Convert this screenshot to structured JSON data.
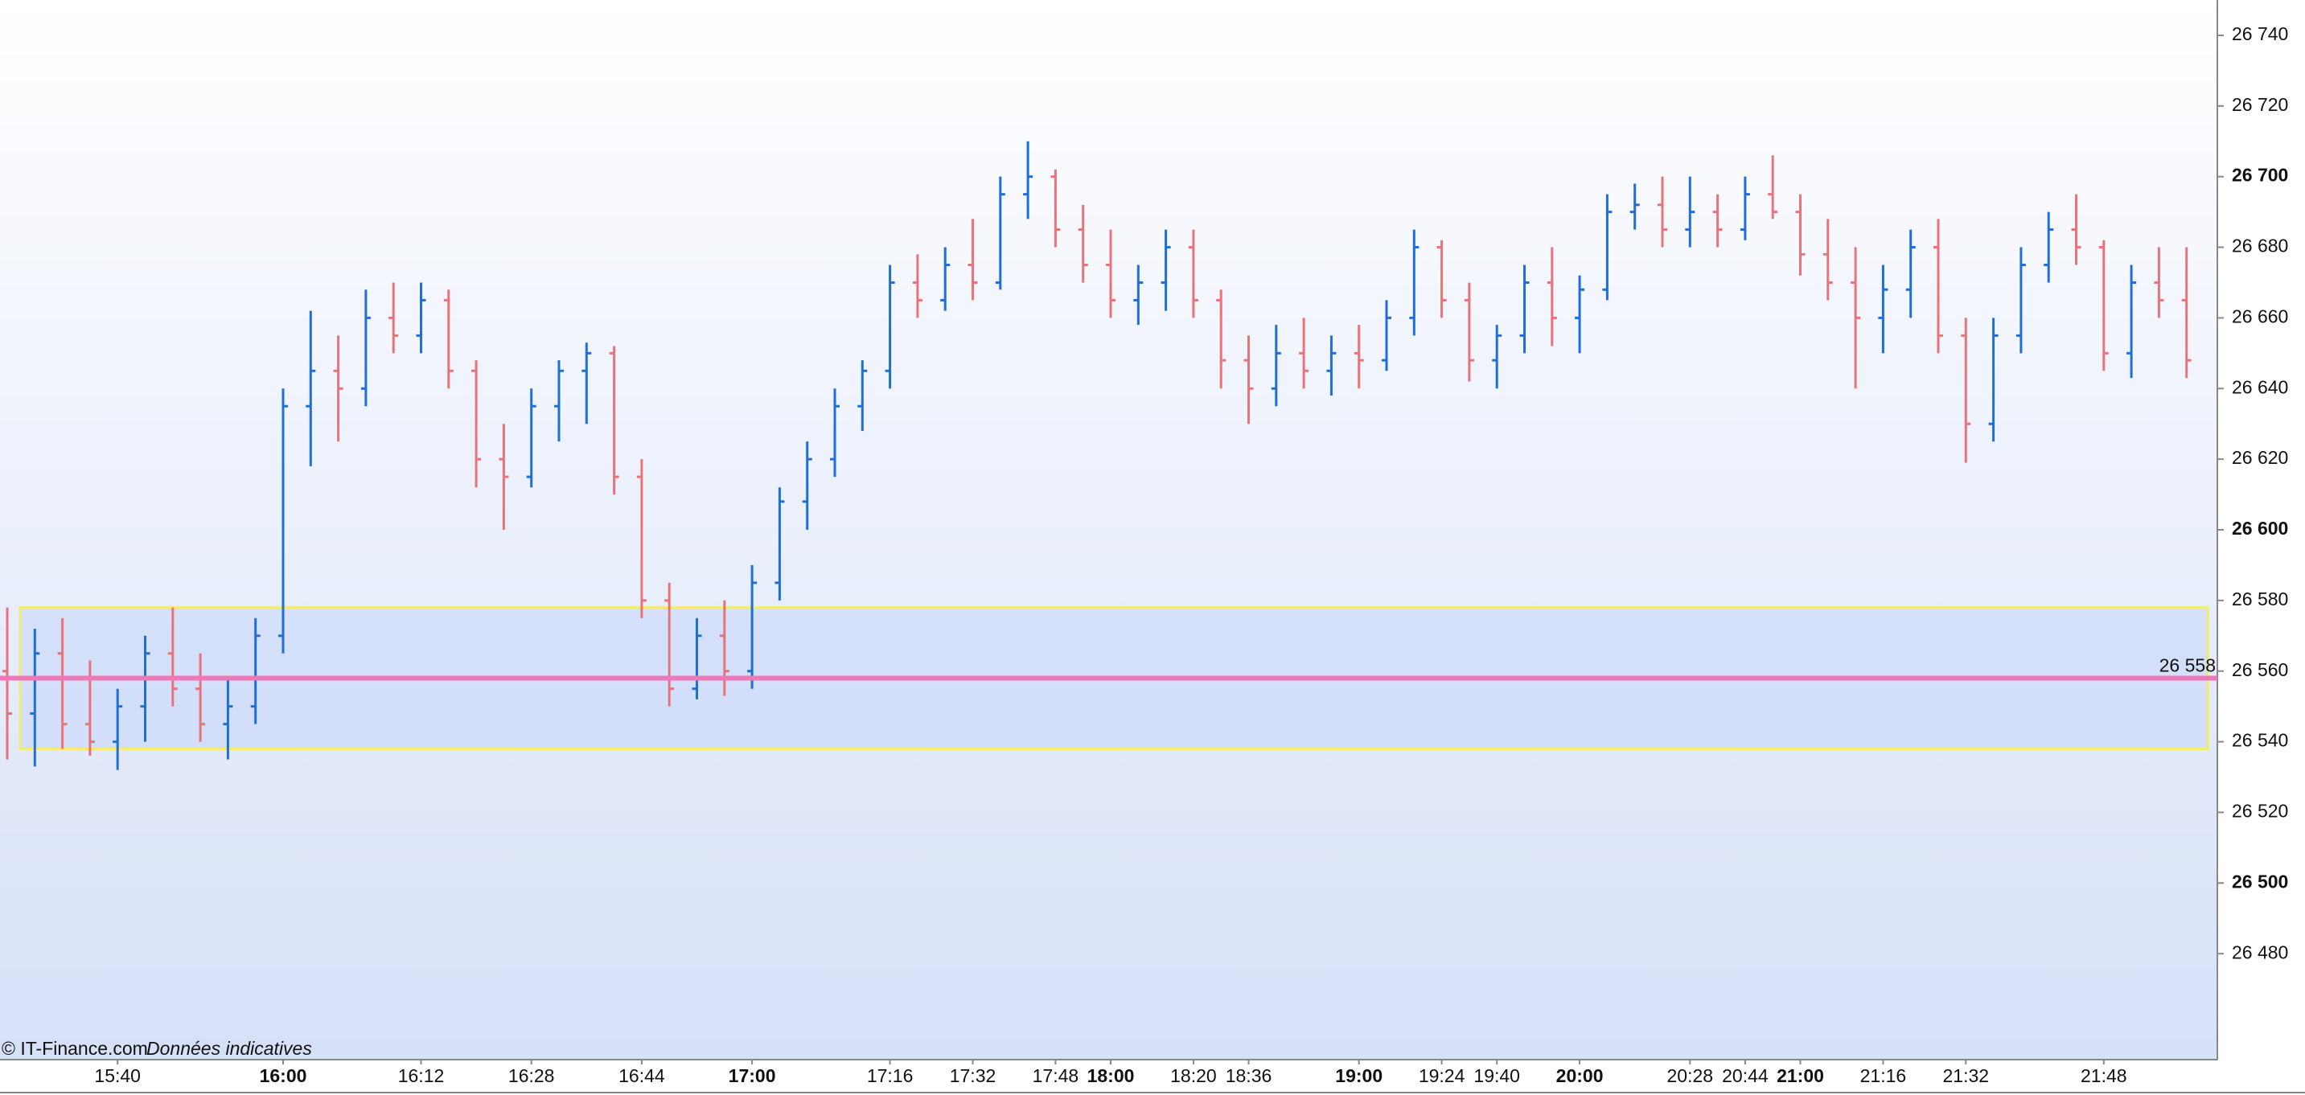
{
  "chart_data": {
    "type": "ohlc",
    "source": "© IT-Finance.com",
    "note": "Données indicatives",
    "categories": [
      null,
      null,
      null,
      null,
      "15:40",
      null,
      null,
      null,
      null,
      null,
      "16:00",
      null,
      null,
      null,
      null,
      "16:12",
      null,
      null,
      null,
      "16:28",
      null,
      null,
      null,
      "16:44",
      null,
      null,
      null,
      "17:00",
      null,
      null,
      null,
      null,
      "17:16",
      null,
      null,
      "17:32",
      null,
      null,
      "17:48",
      null,
      "18:00",
      null,
      null,
      "18:20",
      null,
      "18:36",
      null,
      null,
      null,
      "19:00",
      null,
      null,
      "19:24",
      null,
      "19:40",
      null,
      null,
      "20:00",
      null,
      null,
      null,
      "20:28",
      null,
      "20:44",
      null,
      "21:00",
      null,
      null,
      "21:16",
      null,
      null,
      "21:32",
      null,
      null,
      null,
      null,
      "21:48",
      null,
      null,
      null
    ],
    "open": [
      26560,
      26548,
      26565,
      26545,
      26540,
      26550,
      26565,
      26555,
      26545,
      26550,
      26570,
      26635,
      26645,
      26640,
      26660,
      26655,
      26665,
      26645,
      26620,
      26615,
      26635,
      26645,
      26650,
      26615,
      26580,
      26555,
      26570,
      26560,
      26585,
      26608,
      26620,
      26635,
      26645,
      26670,
      26665,
      26675,
      26670,
      26695,
      26700,
      26685,
      26675,
      26665,
      26670,
      26680,
      26665,
      26648,
      26640,
      26650,
      26645,
      26650,
      26648,
      26660,
      26680,
      26665,
      26648,
      26655,
      26670,
      26660,
      26668,
      26690,
      26692,
      26685,
      26690,
      26685,
      26695,
      26690,
      26678,
      26670,
      26660,
      26668,
      26680,
      26655,
      26630,
      26655,
      26675,
      26685,
      26680,
      26650,
      26670,
      26665
    ],
    "high": [
      26578,
      26572,
      26575,
      26563,
      26555,
      26570,
      26578,
      26565,
      26558,
      26575,
      26640,
      26662,
      26655,
      26668,
      26670,
      26670,
      26668,
      26648,
      26630,
      26640,
      26648,
      26653,
      26652,
      26620,
      26585,
      26575,
      26580,
      26590,
      26612,
      26625,
      26640,
      26648,
      26675,
      26678,
      26680,
      26688,
      26700,
      26710,
      26702,
      26692,
      26685,
      26675,
      26685,
      26685,
      26668,
      26655,
      26658,
      26660,
      26655,
      26658,
      26665,
      26685,
      26682,
      26670,
      26658,
      26675,
      26680,
      26672,
      26695,
      26698,
      26700,
      26700,
      26695,
      26700,
      26706,
      26695,
      26688,
      26680,
      26675,
      26685,
      26688,
      26660,
      26660,
      26680,
      26690,
      26695,
      26682,
      26675,
      26680,
      26680
    ],
    "low": [
      26535,
      26533,
      26538,
      26536,
      26532,
      26540,
      26550,
      26540,
      26535,
      26545,
      26565,
      26618,
      26625,
      26635,
      26650,
      26650,
      26640,
      26612,
      26600,
      26612,
      26625,
      26630,
      26610,
      26575,
      26550,
      26552,
      26553,
      26555,
      26580,
      26600,
      26615,
      26628,
      26640,
      26660,
      26662,
      26665,
      26668,
      26688,
      26680,
      26670,
      26660,
      26658,
      26662,
      26660,
      26640,
      26630,
      26635,
      26640,
      26638,
      26640,
      26645,
      26655,
      26660,
      26642,
      26640,
      26650,
      26652,
      26650,
      26665,
      26685,
      26680,
      26680,
      26680,
      26682,
      26688,
      26672,
      26665,
      26640,
      26650,
      26660,
      26650,
      26619,
      26625,
      26650,
      26670,
      26675,
      26645,
      26643,
      26660,
      26643
    ],
    "close": [
      26548,
      26565,
      26545,
      26540,
      26550,
      26565,
      26555,
      26545,
      26550,
      26570,
      26635,
      26645,
      26640,
      26660,
      26655,
      26665,
      26645,
      26620,
      26615,
      26635,
      26645,
      26650,
      26615,
      26580,
      26555,
      26570,
      26560,
      26585,
      26608,
      26620,
      26635,
      26645,
      26670,
      26665,
      26675,
      26670,
      26695,
      26700,
      26685,
      26675,
      26665,
      26670,
      26680,
      26665,
      26648,
      26640,
      26650,
      26645,
      26650,
      26648,
      26660,
      26680,
      26665,
      26648,
      26655,
      26670,
      26660,
      26668,
      26690,
      26692,
      26685,
      26690,
      26685,
      26695,
      26690,
      26678,
      26670,
      26660,
      26668,
      26680,
      26655,
      26630,
      26655,
      26675,
      26685,
      26680,
      26650,
      26670,
      26665,
      26648
    ],
    "up_color": "#1f6fd6",
    "down_color": "#e8737a",
    "zone": [
      26538,
      26578
    ],
    "zone_color": "#f2ec6a",
    "level": {
      "value": 26558,
      "label": "26 558"
    },
    "level_color": "#f078b8",
    "ylim": [
      26450,
      26750
    ],
    "yticks": [
      {
        "value": 26480,
        "label": "26 480"
      },
      {
        "value": 26500,
        "label": "26 500"
      },
      {
        "value": 26520,
        "label": "26 520"
      },
      {
        "value": 26540,
        "label": "26 540"
      },
      {
        "value": 26560,
        "label": "26 560"
      },
      {
        "value": 26580,
        "label": "26 580"
      },
      {
        "value": 26600,
        "label": "26 600"
      },
      {
        "value": 26620,
        "label": "26 620"
      },
      {
        "value": 26640,
        "label": "26 640"
      },
      {
        "value": 26660,
        "label": "26 660"
      },
      {
        "value": 26680,
        "label": "26 680"
      },
      {
        "value": 26700,
        "label": "26 700"
      },
      {
        "value": 26720,
        "label": "26 720"
      },
      {
        "value": 26740,
        "label": "26 740"
      }
    ]
  }
}
